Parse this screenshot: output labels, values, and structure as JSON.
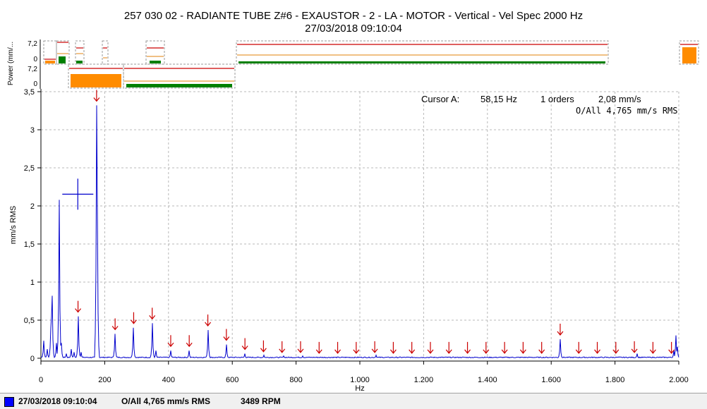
{
  "header": {
    "title_line1": "257 030 02 - RADIANTE TUBE Z#6 - EXAUSTOR - 2 - LA - MOTOR - Vertical - Vel Spec 2000 Hz",
    "title_line2": "27/03/2018 09:10:04"
  },
  "cursor_readout": {
    "label": "Cursor A:",
    "freq": "58,15 Hz",
    "orders": "1 orders",
    "amp": "2,08 mm/s",
    "overall": "O/All 4,765 mm/s RMS"
  },
  "status_bar": {
    "swatch_color": "#0000ff",
    "date": "27/03/2018 09:10:04",
    "overall": "O/All 4,765 mm/s RMS",
    "rpm": "3489 RPM"
  },
  "chart_data": {
    "type": "line",
    "xlabel": "Hz",
    "ylabel": "mm/s RMS",
    "xlim": [
      0,
      2000
    ],
    "ylim": [
      0,
      3.5
    ],
    "x_ticks": [
      0,
      200,
      400,
      600,
      800,
      1000,
      1200,
      1400,
      1600,
      1800,
      2000
    ],
    "x_tick_labels": [
      "0",
      "200",
      "400",
      "600",
      "800",
      "1.000",
      "1.200",
      "1.400",
      "1.600",
      "1.800",
      "2.000"
    ],
    "y_ticks": [
      0,
      0.5,
      1,
      1.5,
      2,
      2.5,
      3,
      3.5
    ],
    "y_tick_labels": [
      "0",
      "0,5",
      "1",
      "1,5",
      "2",
      "2,5",
      "3",
      "3,5"
    ],
    "grid": true,
    "series_color": "#0000cc",
    "harmonic_marker_color": "#cc0000",
    "cursor_a": {
      "x": 58.15,
      "y": 2.08
    },
    "peaks": [
      [
        8,
        0.23
      ],
      [
        20,
        0.12
      ],
      [
        30,
        0.4
      ],
      [
        33,
        0.55
      ],
      [
        36,
        0.82
      ],
      [
        48,
        0.2
      ],
      [
        58.15,
        2.08
      ],
      [
        65,
        0.2
      ],
      [
        80,
        0.06
      ],
      [
        95,
        0.12
      ],
      [
        105,
        0.08
      ],
      [
        116.3,
        0.55
      ],
      [
        125,
        0.08
      ],
      [
        174.5,
        3.32
      ],
      [
        178,
        2.0
      ],
      [
        232.6,
        0.32
      ],
      [
        290.8,
        0.4
      ],
      [
        348.9,
        0.46
      ],
      [
        360,
        0.1
      ],
      [
        407,
        0.1
      ],
      [
        465,
        0.1
      ],
      [
        523.4,
        0.37
      ],
      [
        581.5,
        0.18
      ],
      [
        640,
        0.06
      ],
      [
        700,
        0.04
      ],
      [
        760,
        0.03
      ],
      [
        820,
        0.03
      ],
      [
        1050,
        0.04
      ],
      [
        1628,
        0.25
      ],
      [
        1870,
        0.06
      ],
      [
        1985,
        0.1
      ],
      [
        1992,
        0.3
      ],
      [
        1996,
        0.15
      ]
    ],
    "harmonic_markers": [
      [
        116.3,
        0.55
      ],
      [
        174.5,
        3.32
      ],
      [
        232.6,
        0.32
      ],
      [
        290.8,
        0.4
      ],
      [
        348.9,
        0.46
      ],
      [
        407,
        0.1
      ],
      [
        465,
        0.1
      ],
      [
        523.4,
        0.37
      ],
      [
        581.5,
        0.18
      ],
      [
        639.7,
        0.06
      ],
      [
        697.8,
        0.03
      ],
      [
        756,
        0.02
      ],
      [
        814.1,
        0.02
      ],
      [
        872.3,
        0.01
      ],
      [
        930.4,
        0.01
      ],
      [
        988.6,
        0.01
      ],
      [
        1046.7,
        0.02
      ],
      [
        1104.9,
        0.01
      ],
      [
        1163,
        0.01
      ],
      [
        1221.2,
        0.01
      ],
      [
        1279.3,
        0.01
      ],
      [
        1337.5,
        0.01
      ],
      [
        1395.6,
        0.01
      ],
      [
        1453.8,
        0.01
      ],
      [
        1511.9,
        0.01
      ],
      [
        1570.1,
        0.01
      ],
      [
        1628.2,
        0.25
      ],
      [
        1686.4,
        0.01
      ],
      [
        1744.5,
        0.01
      ],
      [
        1802.7,
        0.01
      ],
      [
        1860.8,
        0.02
      ],
      [
        1919,
        0.01
      ],
      [
        1977.1,
        0.01
      ]
    ]
  },
  "power_panel": {
    "ylabel": "Power (mm/...",
    "top_ticks": [
      "7,2",
      "0"
    ],
    "bottom_ticks": [
      "7,2",
      "0"
    ],
    "colors": {
      "bar_orange": "#ff8c00",
      "bar_green": "#008000",
      "line_red": "#cc0000",
      "line_orange": "#e89a3a",
      "dashed": "#999999"
    }
  }
}
